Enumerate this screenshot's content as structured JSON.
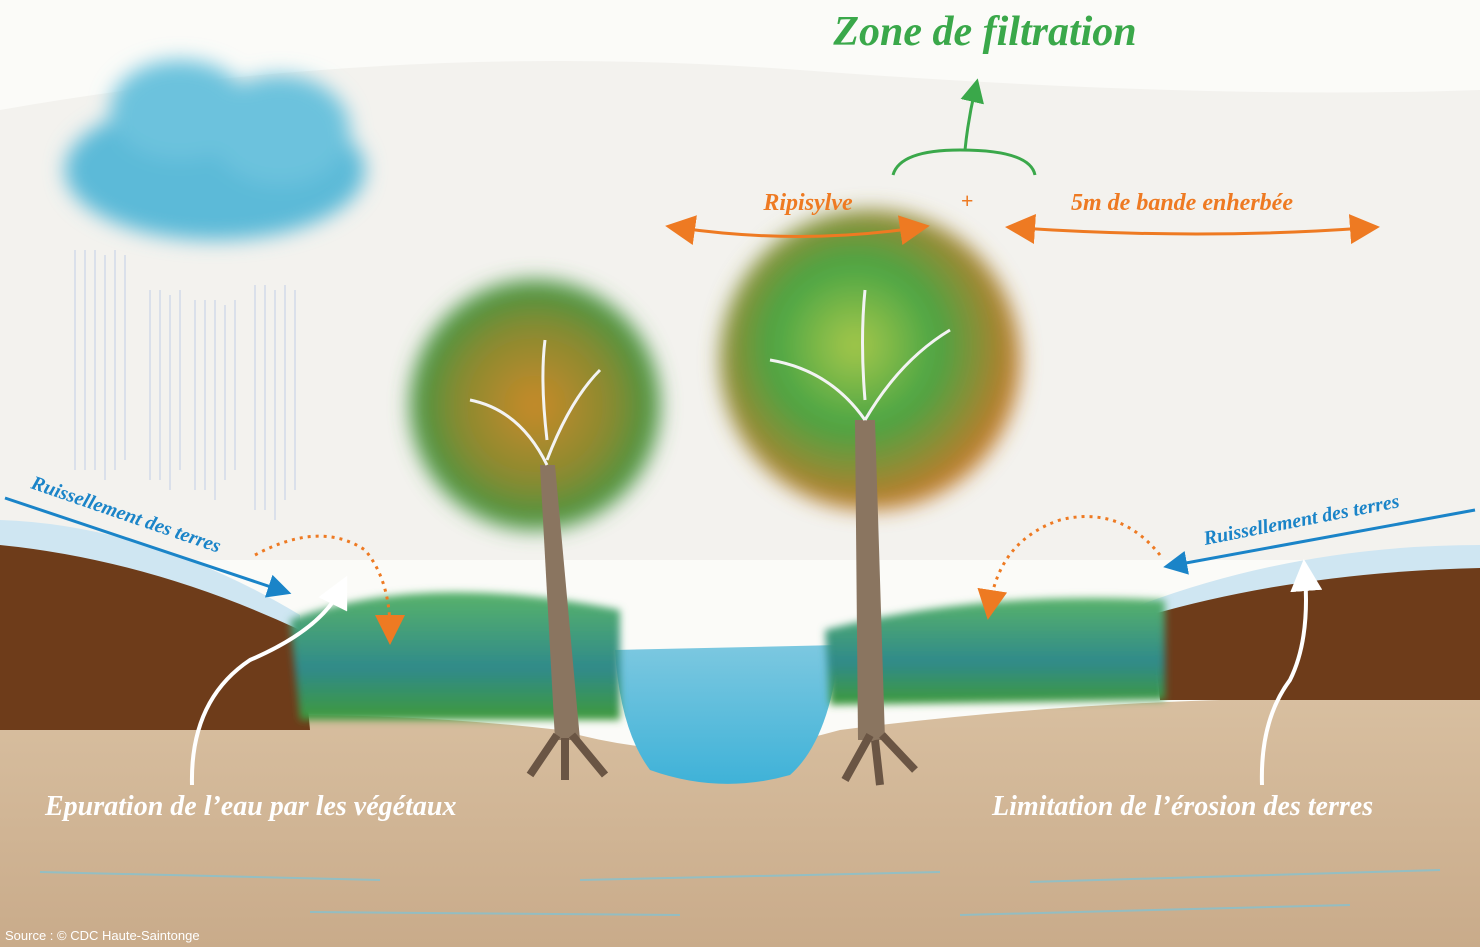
{
  "title": "Zone de filtration",
  "labels": {
    "ripisylve": "Ripisylve",
    "plus": "+",
    "bande": "5m de bande enherbée",
    "runoff_left": "Ruissellement des terres",
    "runoff_right": "Ruissellement des terres",
    "epuration": "Epuration de l’eau par les végétaux",
    "limitation": "Limitation de l’érosion des terres"
  },
  "source": "Source : © CDC Haute-Saintonge"
}
